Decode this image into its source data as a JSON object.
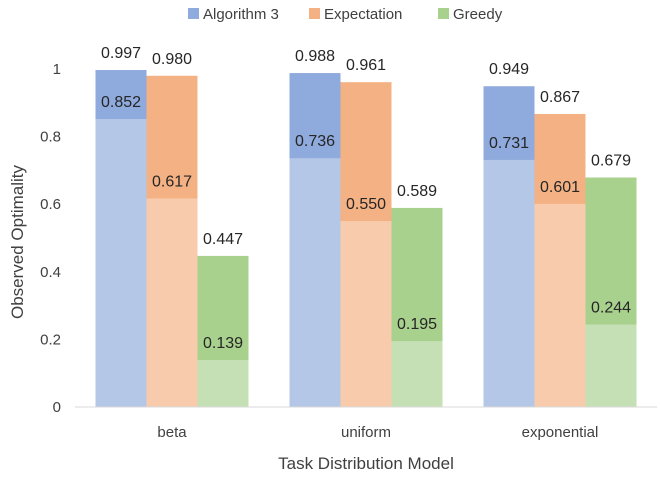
{
  "chart_data": {
    "type": "bar",
    "subtype": "grouped-overlay",
    "title": "",
    "xlabel": "Task Distribution Model",
    "ylabel": "Observed Optimality",
    "ylim": [
      0,
      1
    ],
    "yticks": [
      "0",
      "0.2",
      "0.4",
      "0.6",
      "0.8",
      "1"
    ],
    "ytick_values": [
      0,
      0.2,
      0.4,
      0.6,
      0.8,
      1
    ],
    "legend_position": "top-center",
    "categories": [
      "beta",
      "uniform",
      "exponential"
    ],
    "series": [
      {
        "name": "Algorithm 3",
        "color_dark": "#8faadc",
        "color_light": "#b4c7e7",
        "values": [
          0.997,
          0.988,
          0.949
        ],
        "inner_values": [
          0.852,
          0.736,
          0.731
        ],
        "value_labels": [
          "0.997",
          "0.988",
          "0.949"
        ],
        "inner_labels": [
          "0.852",
          "0.736",
          "0.731"
        ]
      },
      {
        "name": "Expectation",
        "color_dark": "#f4b183",
        "color_light": "#f8cbad",
        "values": [
          0.98,
          0.961,
          0.867
        ],
        "inner_values": [
          0.617,
          0.55,
          0.601
        ],
        "value_labels": [
          "0.980",
          "0.961",
          "0.867"
        ],
        "inner_labels": [
          "0.617",
          "0.550",
          "0.601"
        ]
      },
      {
        "name": "Greedy",
        "color_dark": "#a9d18e",
        "color_light": "#c5e0b4",
        "values": [
          0.447,
          0.589,
          0.679
        ],
        "inner_values": [
          0.139,
          0.195,
          0.244
        ],
        "value_labels": [
          "0.447",
          "0.589",
          "0.679"
        ],
        "inner_labels": [
          "0.139",
          "0.195",
          "0.244"
        ]
      }
    ]
  }
}
